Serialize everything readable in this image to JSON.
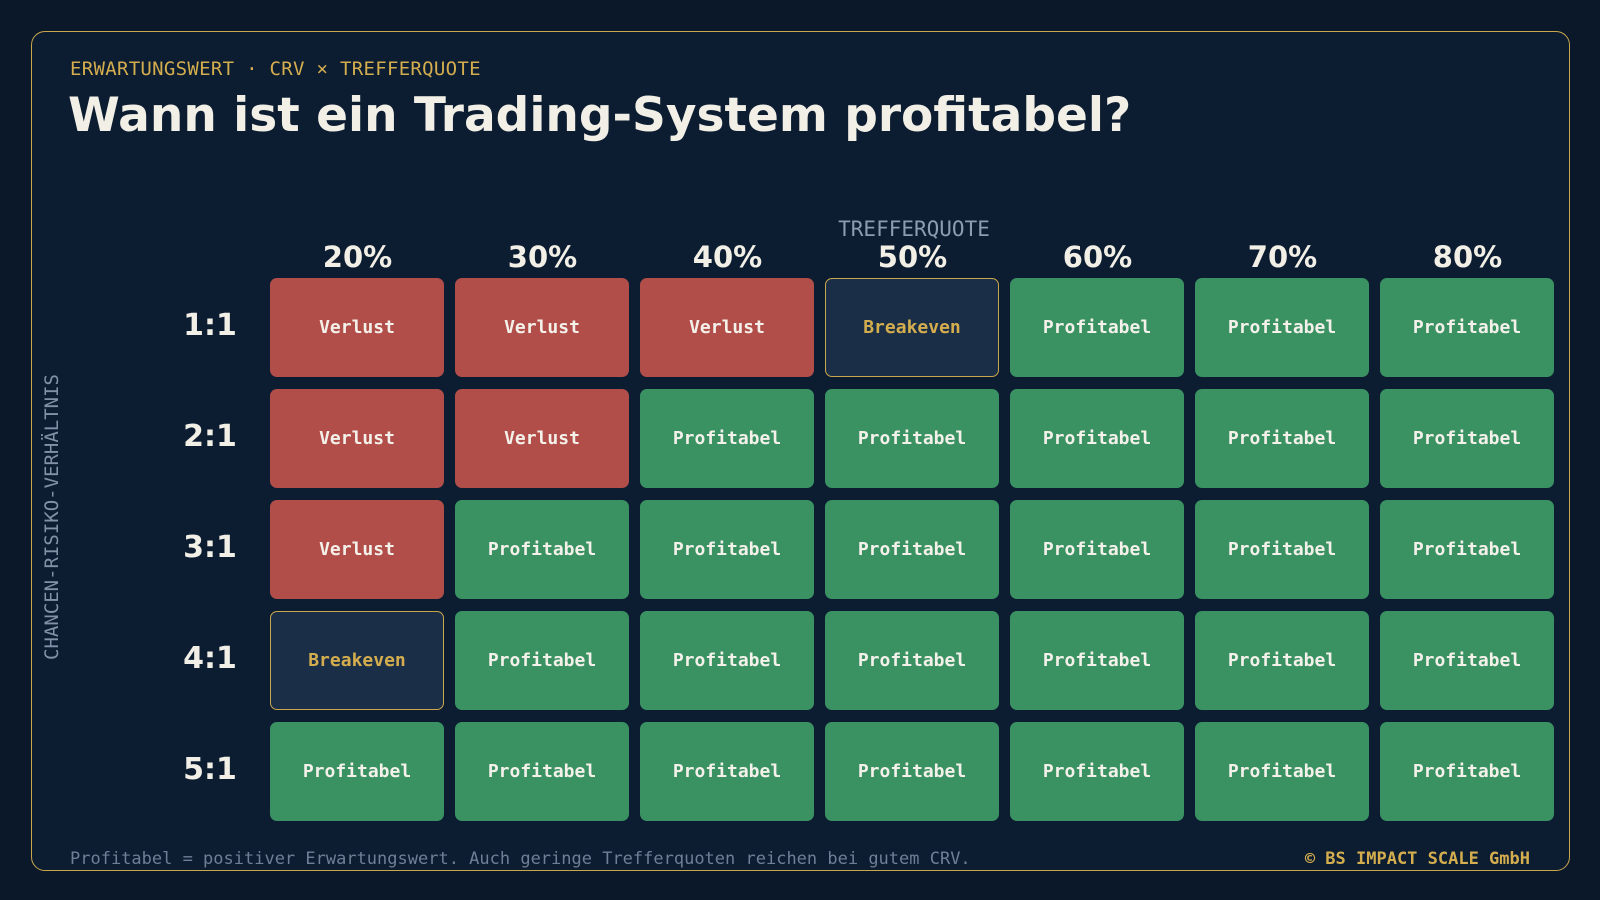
{
  "header": {
    "kicker": "ERWARTUNGSWERT · CRV × TREFFERQUOTE",
    "title": "Wann ist ein Trading-System profitabel?"
  },
  "chart_data": {
    "type": "heatmap",
    "xlabel": "TREFFERQUOTE",
    "ylabel": "CHANCEN-RISIKO-VERHÄLTNIS",
    "x": [
      "20%",
      "30%",
      "40%",
      "50%",
      "60%",
      "70%",
      "80%"
    ],
    "y": [
      "1:1",
      "2:1",
      "3:1",
      "4:1",
      "5:1"
    ],
    "cells": [
      [
        "Verlust",
        "Verlust",
        "Verlust",
        "Breakeven",
        "Profitabel",
        "Profitabel",
        "Profitabel"
      ],
      [
        "Verlust",
        "Verlust",
        "Profitabel",
        "Profitabel",
        "Profitabel",
        "Profitabel",
        "Profitabel"
      ],
      [
        "Verlust",
        "Profitabel",
        "Profitabel",
        "Profitabel",
        "Profitabel",
        "Profitabel",
        "Profitabel"
      ],
      [
        "Breakeven",
        "Profitabel",
        "Profitabel",
        "Profitabel",
        "Profitabel",
        "Profitabel",
        "Profitabel"
      ],
      [
        "Profitabel",
        "Profitabel",
        "Profitabel",
        "Profitabel",
        "Profitabel",
        "Profitabel",
        "Profitabel"
      ]
    ],
    "colors": {
      "Verlust": "#b24e4a",
      "Profitabel": "#3a9263",
      "Breakeven": "#1b2e47"
    }
  },
  "footer": {
    "note": "Profitabel = positiver Erwartungswert. Auch geringe Trefferquoten reichen bei gutem CRV.",
    "copyright": "© BS IMPACT SCALE GmbH"
  }
}
